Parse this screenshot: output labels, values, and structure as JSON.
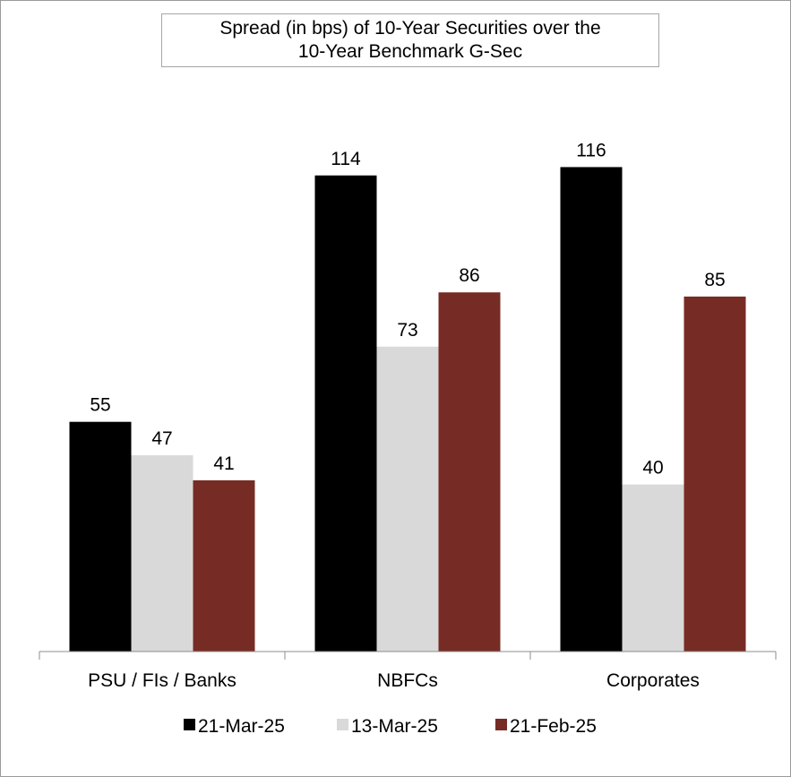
{
  "chart_data": {
    "type": "bar",
    "title": "Spread (in bps) of 10-Year Securities over the\n10-Year Benchmark G-Sec",
    "categories": [
      "PSU / FIs / Banks",
      "NBFCs",
      "Corporates"
    ],
    "series": [
      {
        "name": "21-Mar-25",
        "values": [
          55,
          114,
          116
        ],
        "color": "#000000"
      },
      {
        "name": "13-Mar-25",
        "values": [
          47,
          73,
          40
        ],
        "color": "#d9d9d9"
      },
      {
        "name": "21-Feb-25",
        "values": [
          41,
          86,
          85
        ],
        "color": "#772b25"
      }
    ],
    "ylim": [
      0,
      130
    ],
    "grid": false,
    "legend": "bottom",
    "xlabel": "",
    "ylabel": ""
  }
}
